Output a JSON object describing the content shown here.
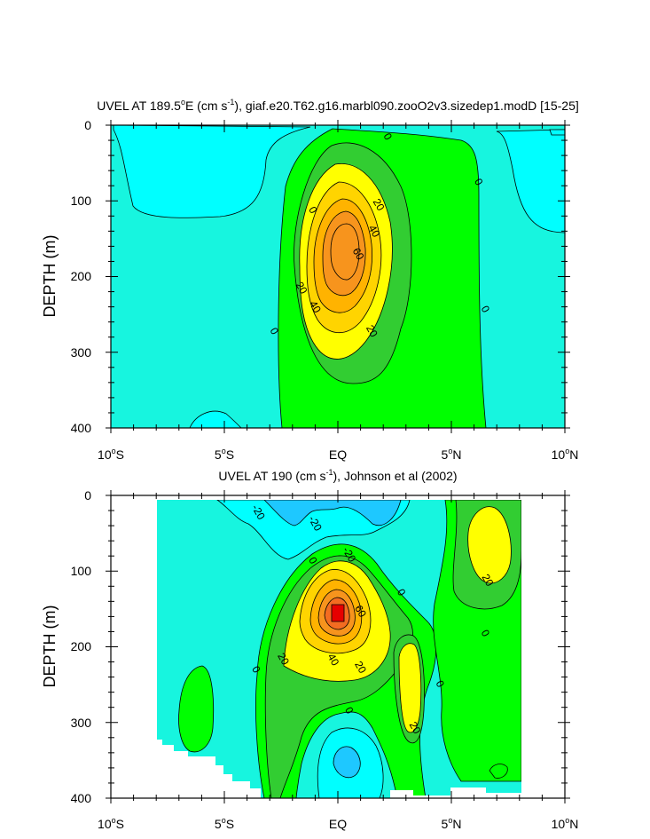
{
  "chart_data": [
    {
      "type": "contour",
      "title_main": "UVEL AT 189.5",
      "title_deg": "o",
      "title_rest": "E (cm s",
      "title_exp": "-1",
      "title_tail": "), giaf.e20.T62.g16.marbl090.zooO2v3.sizedep1.modD [15-25]",
      "ylabel": "DEPTH (m)",
      "xlim": [
        -10,
        10
      ],
      "ylim": [
        400,
        0
      ],
      "xticks": [
        {
          "v": -10,
          "num": "10",
          "hem": "S"
        },
        {
          "v": -5,
          "num": "5",
          "hem": "S"
        },
        {
          "v": 0,
          "num": "EQ",
          "hem": ""
        },
        {
          "v": 5,
          "num": "5",
          "hem": "N"
        },
        {
          "v": 10,
          "num": "10",
          "hem": "N"
        }
      ],
      "yticks": [
        "0",
        "100",
        "200",
        "300",
        "400"
      ],
      "contour_labels": [
        {
          "text": "0",
          "lat": 2.2,
          "depth": 15
        },
        {
          "text": "0",
          "lat": 6.2,
          "depth": 75
        },
        {
          "text": "0",
          "lat": -1.1,
          "depth": 112
        },
        {
          "text": "20",
          "lat": 1.8,
          "depth": 105
        },
        {
          "text": "40",
          "lat": 1.6,
          "depth": 140
        },
        {
          "text": "60",
          "lat": 0.9,
          "depth": 170
        },
        {
          "text": "20",
          "lat": -1.6,
          "depth": 215
        },
        {
          "text": "40",
          "lat": -1.0,
          "depth": 240
        },
        {
          "text": "20",
          "lat": 1.5,
          "depth": 272
        },
        {
          "text": "0",
          "lat": -2.8,
          "depth": 272
        },
        {
          "text": "0",
          "lat": 6.5,
          "depth": 243
        }
      ]
    },
    {
      "type": "contour",
      "title_main": "UVEL AT 190 (cm s",
      "title_exp": "-1",
      "title_tail": "), Johnson et al (2002)",
      "ylabel": "DEPTH (m)",
      "xlim": [
        -10,
        10
      ],
      "ylim": [
        400,
        0
      ],
      "xticks": [
        {
          "v": -10,
          "num": "10",
          "hem": "S"
        },
        {
          "v": -5,
          "num": "5",
          "hem": "S"
        },
        {
          "v": 0,
          "num": "EQ",
          "hem": ""
        },
        {
          "v": 5,
          "num": "5",
          "hem": "N"
        },
        {
          "v": 10,
          "num": "10",
          "hem": "N"
        }
      ],
      "yticks": [
        "0",
        "100",
        "200",
        "300",
        "400"
      ],
      "contour_labels": [
        {
          "text": "-20",
          "lat": -3.5,
          "depth": 22
        },
        {
          "text": "-20",
          "lat": -1.0,
          "depth": 37
        },
        {
          "text": "-20",
          "lat": 0.5,
          "depth": 78
        },
        {
          "text": "0",
          "lat": -1.1,
          "depth": 86
        },
        {
          "text": "0",
          "lat": 2.8,
          "depth": 128
        },
        {
          "text": "20",
          "lat": 6.6,
          "depth": 112
        },
        {
          "text": "60",
          "lat": 1.0,
          "depth": 153
        },
        {
          "text": "0",
          "lat": 6.5,
          "depth": 182
        },
        {
          "text": "20",
          "lat": -2.4,
          "depth": 216
        },
        {
          "text": "0",
          "lat": -3.6,
          "depth": 230
        },
        {
          "text": "40",
          "lat": -0.2,
          "depth": 217
        },
        {
          "text": "20",
          "lat": 1.0,
          "depth": 227
        },
        {
          "text": "0",
          "lat": 4.5,
          "depth": 249
        },
        {
          "text": "0",
          "lat": 0.5,
          "depth": 284
        },
        {
          "text": "20",
          "lat": 3.4,
          "depth": 307
        }
      ]
    }
  ]
}
